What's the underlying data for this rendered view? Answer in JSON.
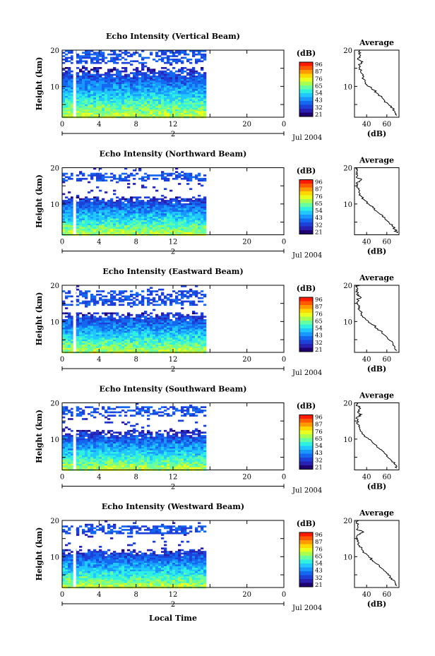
{
  "figure": {
    "xlabel": "Local Time"
  },
  "colorbar": {
    "unit": "(dB)",
    "ticks": [
      "96",
      "87",
      "76",
      "65",
      "54",
      "43",
      "32",
      "21"
    ],
    "colors": [
      "#ff1a00",
      "#ff5a00",
      "#ff9a00",
      "#ffd800",
      "#e8ff20",
      "#a8ff50",
      "#68ffa0",
      "#30f0e0",
      "#20c8ff",
      "#1898ff",
      "#1468f0",
      "#1c40d8",
      "#2820b0",
      "#200070"
    ]
  },
  "chart_data": [
    {
      "type": "heatmap",
      "title": "Echo Intensity (Vertical Beam)",
      "ylabel": "Height (km)",
      "xticks": [
        "0",
        "4",
        "8",
        "12",
        "20",
        "0"
      ],
      "yticks": [
        "20",
        "10"
      ],
      "date_label": "Jul 2004",
      "day_marker": "2",
      "xlim_hours": [
        0,
        24
      ],
      "ylim_km": [
        1.5,
        20
      ],
      "data_end_hour": 15.3,
      "gap_hours": [
        1.2,
        1.5
      ],
      "lower_echo_top_km": 15.5,
      "upper_layer_km": [
        16.3,
        20
      ],
      "profile": {
        "title": "Average",
        "xlabel": "(dB)",
        "xticks": [
          "40",
          "60"
        ],
        "yticks": [
          "20",
          "10"
        ],
        "xlim": [
          28,
          72
        ],
        "points": [
          [
            70,
            2
          ],
          [
            68,
            3
          ],
          [
            66,
            4
          ],
          [
            62,
            5
          ],
          [
            58,
            6
          ],
          [
            55,
            7
          ],
          [
            51,
            8
          ],
          [
            47,
            9
          ],
          [
            42,
            10
          ],
          [
            39,
            11
          ],
          [
            37,
            12
          ],
          [
            36,
            13
          ],
          [
            34,
            14
          ],
          [
            33,
            15
          ],
          [
            32,
            16
          ],
          [
            36,
            16.8
          ],
          [
            31,
            17.5
          ],
          [
            34,
            18.5
          ],
          [
            32,
            19.5
          ],
          [
            33,
            20
          ]
        ]
      }
    },
    {
      "type": "heatmap",
      "title": "Echo Intensity (Northward Beam)",
      "ylabel": "Height (km)",
      "xticks": [
        "0",
        "4",
        "8",
        "12",
        "20",
        "0"
      ],
      "yticks": [
        "20",
        "10"
      ],
      "date_label": "Jul 2004",
      "day_marker": "2",
      "xlim_hours": [
        0,
        24
      ],
      "ylim_km": [
        1.5,
        20
      ],
      "data_end_hour": 15.3,
      "gap_hours": [
        1.2,
        1.5
      ],
      "lower_echo_top_km": 12.5,
      "upper_layer_km": [
        16.5,
        19
      ],
      "profile": {
        "title": "Average",
        "xlabel": "(dB)",
        "xticks": [
          "40",
          "60"
        ],
        "yticks": [
          "20",
          "10"
        ],
        "xlim": [
          28,
          72
        ],
        "points": [
          [
            70,
            2
          ],
          [
            68,
            3
          ],
          [
            65,
            4
          ],
          [
            62,
            5
          ],
          [
            58,
            6
          ],
          [
            55,
            7
          ],
          [
            50,
            8
          ],
          [
            46,
            9
          ],
          [
            42,
            10
          ],
          [
            38,
            11
          ],
          [
            35,
            12
          ],
          [
            33,
            13
          ],
          [
            32,
            14
          ],
          [
            31,
            15
          ],
          [
            31,
            16
          ],
          [
            35,
            16.7
          ],
          [
            30,
            17.5
          ],
          [
            31,
            18.5
          ],
          [
            30,
            19.5
          ],
          [
            31,
            20
          ]
        ]
      }
    },
    {
      "type": "heatmap",
      "title": "Echo Intensity (Eastward Beam)",
      "ylabel": "Height (km)",
      "xticks": [
        "0",
        "4",
        "8",
        "12",
        "20",
        "0"
      ],
      "yticks": [
        "20",
        "10"
      ],
      "date_label": "Jul 2004",
      "day_marker": "2",
      "xlim_hours": [
        0,
        24
      ],
      "ylim_km": [
        1.5,
        20
      ],
      "data_end_hour": 15.3,
      "gap_hours": [
        1.2,
        1.5
      ],
      "lower_echo_top_km": 12.8,
      "upper_layer_km": [
        14.5,
        19
      ],
      "profile": {
        "title": "Average",
        "xlabel": "(dB)",
        "xticks": [
          "40",
          "60"
        ],
        "yticks": [
          "20",
          "10"
        ],
        "xlim": [
          28,
          72
        ],
        "points": [
          [
            70,
            2
          ],
          [
            68,
            3
          ],
          [
            66,
            4
          ],
          [
            62,
            5
          ],
          [
            59,
            6
          ],
          [
            55,
            7
          ],
          [
            51,
            8
          ],
          [
            47,
            9
          ],
          [
            42,
            10
          ],
          [
            38,
            11
          ],
          [
            35,
            12
          ],
          [
            33,
            13
          ],
          [
            32,
            14
          ],
          [
            31,
            15
          ],
          [
            31,
            16
          ],
          [
            34,
            16.8
          ],
          [
            30,
            17.5
          ],
          [
            31,
            18.5
          ],
          [
            30,
            19.5
          ],
          [
            31,
            20
          ]
        ]
      }
    },
    {
      "type": "heatmap",
      "title": "Echo Intensity (Southward Beam)",
      "ylabel": "Height (km)",
      "xticks": [
        "0",
        "4",
        "8",
        "12",
        "20",
        "0"
      ],
      "yticks": [
        "20",
        "10"
      ],
      "date_label": "Jul 2004",
      "day_marker": "2",
      "xlim_hours": [
        0,
        24
      ],
      "ylim_km": [
        1.5,
        20
      ],
      "data_end_hour": 15.3,
      "gap_hours": [
        1.2,
        1.5
      ],
      "lower_echo_top_km": 12.8,
      "upper_layer_km": [
        16.5,
        19.5
      ],
      "profile": {
        "title": "Average",
        "xlabel": "(dB)",
        "xticks": [
          "40",
          "60"
        ],
        "yticks": [
          "20",
          "10"
        ],
        "xlim": [
          28,
          72
        ],
        "points": [
          [
            70,
            2
          ],
          [
            68,
            3
          ],
          [
            65,
            4
          ],
          [
            61,
            5
          ],
          [
            58,
            6
          ],
          [
            55,
            7
          ],
          [
            50,
            8
          ],
          [
            46,
            9
          ],
          [
            42,
            10
          ],
          [
            38,
            11
          ],
          [
            35,
            12
          ],
          [
            33,
            13
          ],
          [
            32,
            14
          ],
          [
            31,
            15
          ],
          [
            30,
            16
          ],
          [
            35,
            16.8
          ],
          [
            31,
            17.5
          ],
          [
            34,
            18.5
          ],
          [
            30,
            19.5
          ],
          [
            31,
            20
          ]
        ]
      }
    },
    {
      "type": "heatmap",
      "title": "Echo Intensity (Westward Beam)",
      "ylabel": "Height (km)",
      "xticks": [
        "0",
        "4",
        "8",
        "12",
        "20",
        "0"
      ],
      "yticks": [
        "20",
        "10"
      ],
      "date_label": "Jul 2004",
      "day_marker": "2",
      "xlim_hours": [
        0,
        24
      ],
      "ylim_km": [
        1.5,
        20
      ],
      "data_end_hour": 15.3,
      "gap_hours": [
        1.2,
        1.5
      ],
      "lower_echo_top_km": 12.5,
      "upper_layer_km": [
        16.5,
        19
      ],
      "profile": {
        "title": "Average",
        "xlabel": "(dB)",
        "xticks": [
          "40",
          "60"
        ],
        "yticks": [
          "20",
          "10"
        ],
        "xlim": [
          28,
          72
        ],
        "points": [
          [
            70,
            2
          ],
          [
            68,
            3
          ],
          [
            65,
            4
          ],
          [
            61,
            5
          ],
          [
            58,
            6
          ],
          [
            54,
            7
          ],
          [
            50,
            8
          ],
          [
            46,
            9
          ],
          [
            42,
            10
          ],
          [
            38,
            11
          ],
          [
            35,
            12
          ],
          [
            33,
            13
          ],
          [
            32,
            14
          ],
          [
            31,
            15
          ],
          [
            31,
            16
          ],
          [
            37,
            16.8
          ],
          [
            30,
            17.5
          ],
          [
            31,
            18.5
          ],
          [
            30,
            19.5
          ],
          [
            31,
            20
          ]
        ]
      }
    }
  ]
}
